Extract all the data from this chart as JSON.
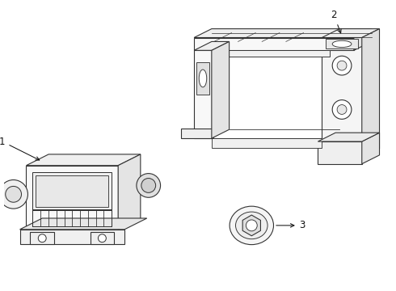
{
  "background_color": "#ffffff",
  "line_color": "#333333",
  "line_width": 0.8,
  "label_color": "#111111",
  "label_fontsize": 8.5,
  "arrow_color": "#111111",
  "figsize": [
    4.9,
    3.6
  ],
  "dpi": 100
}
